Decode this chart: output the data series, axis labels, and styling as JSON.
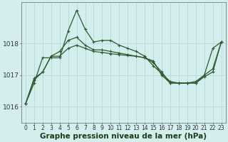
{
  "bg_color": "#d4eeee",
  "grid_color": "#b8d8d8",
  "line_color": "#2d5a2d",
  "xlabel": "Graphe pression niveau de la mer (hPa)",
  "xlabel_fontsize": 7.5,
  "xlabel_fontweight": "bold",
  "ylim": [
    1015.5,
    1019.3
  ],
  "xlim": [
    -0.5,
    23.5
  ],
  "yticks": [
    1016,
    1017,
    1018
  ],
  "xticks": [
    0,
    1,
    2,
    3,
    4,
    5,
    6,
    7,
    8,
    9,
    10,
    11,
    12,
    13,
    14,
    15,
    16,
    17,
    18,
    19,
    20,
    21,
    22,
    23
  ],
  "tick_fontsize": 5.5,
  "ylabel_fontsize": 6.5,
  "series": [
    [
      1016.1,
      1016.75,
      1017.55,
      1017.55,
      1017.55,
      1018.4,
      1019.05,
      1018.45,
      1018.05,
      1018.1,
      1018.1,
      1017.95,
      1017.85,
      1017.75,
      1017.6,
      1017.3,
      1017.05,
      1016.8,
      1016.75,
      1016.75,
      1016.8,
      1017.0,
      1017.85,
      1018.05
    ],
    [
      1016.1,
      1016.9,
      1017.1,
      1017.6,
      1017.75,
      1018.1,
      1018.2,
      1017.95,
      1017.8,
      1017.8,
      1017.75,
      1017.7,
      1017.65,
      1017.6,
      1017.55,
      1017.4,
      1017.1,
      1016.75,
      1016.75,
      1016.75,
      1016.75,
      1017.0,
      1017.2,
      1018.05
    ],
    [
      1016.1,
      1016.85,
      1017.1,
      1017.6,
      1017.6,
      1017.85,
      1017.95,
      1017.85,
      1017.75,
      1017.72,
      1017.68,
      1017.65,
      1017.62,
      1017.6,
      1017.55,
      1017.45,
      1017.0,
      1016.75,
      1016.75,
      1016.75,
      1016.75,
      1016.95,
      1017.1,
      1018.05
    ]
  ]
}
